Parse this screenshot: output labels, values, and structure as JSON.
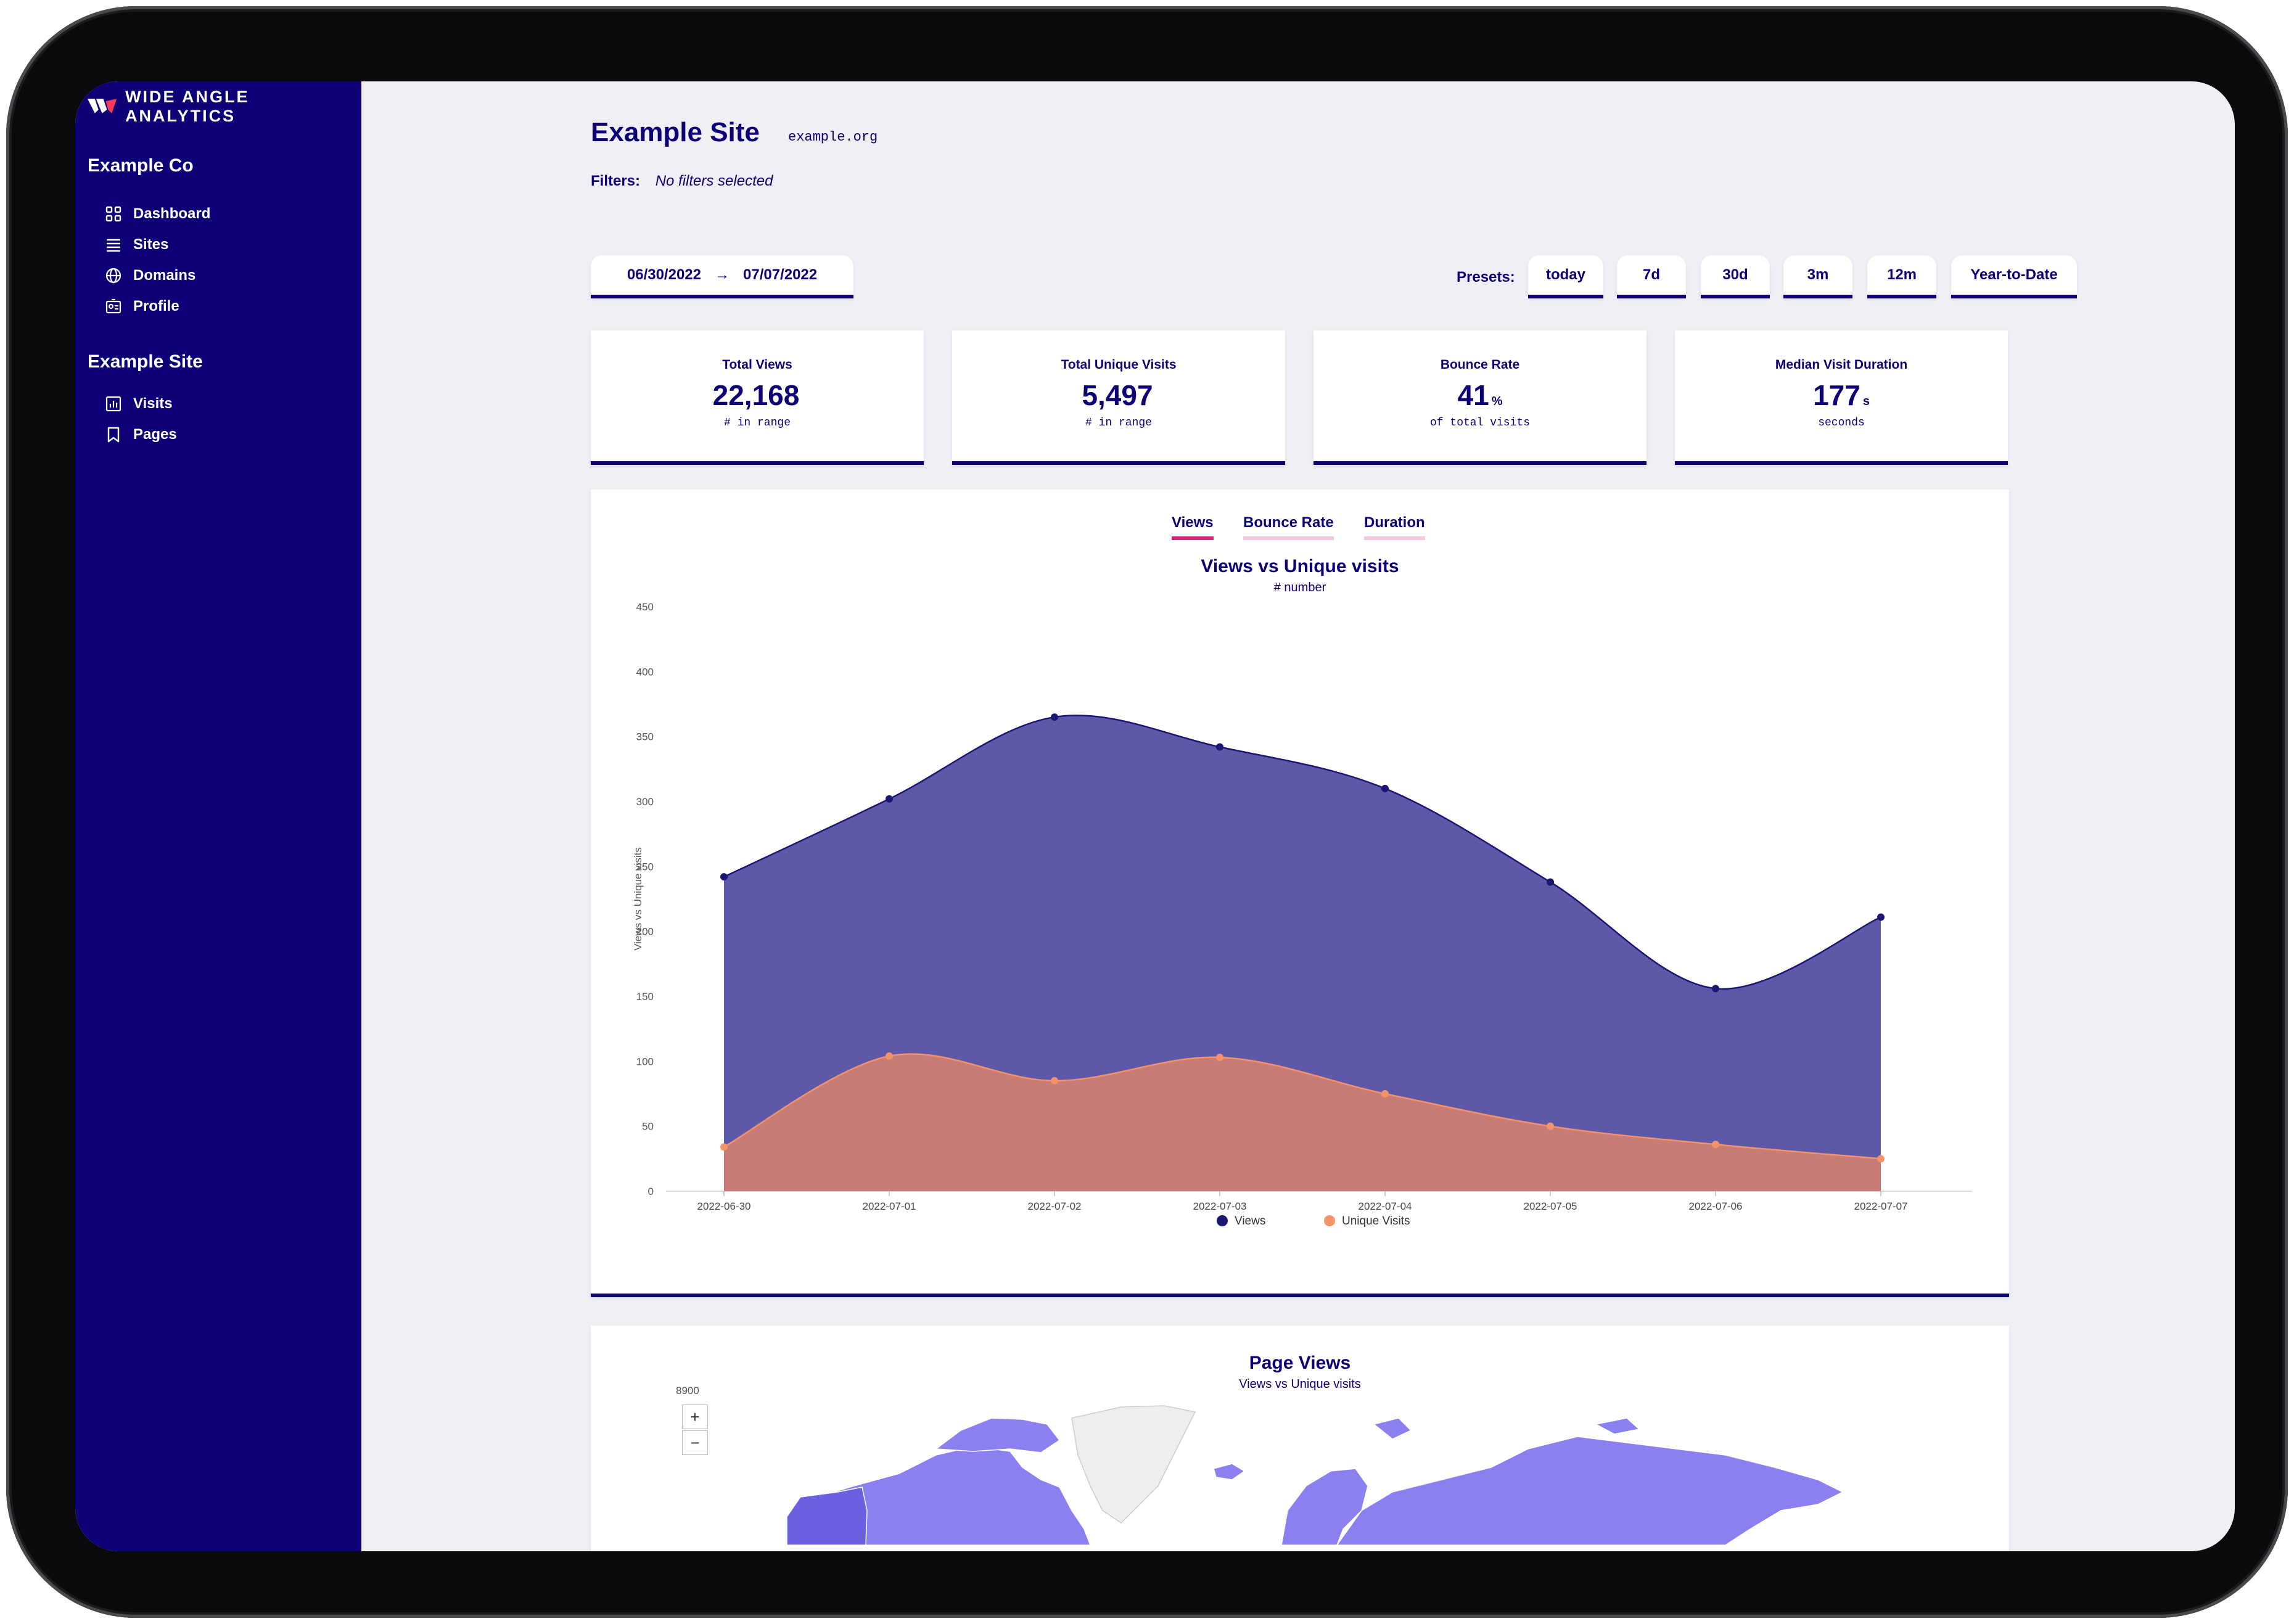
{
  "brand": {
    "name": "wide angle analytics"
  },
  "sidebar": {
    "org_title": "Example Co",
    "org_items": [
      {
        "label": "Dashboard",
        "icon": "dashboard-icon"
      },
      {
        "label": "Sites",
        "icon": "list-icon"
      },
      {
        "label": "Domains",
        "icon": "globe-icon"
      },
      {
        "label": "Profile",
        "icon": "id-card-icon"
      }
    ],
    "site_title": "Example Site",
    "site_items": [
      {
        "label": "Visits",
        "icon": "bar-chart-icon"
      },
      {
        "label": "Pages",
        "icon": "bookmark-icon"
      }
    ]
  },
  "header": {
    "title": "Example Site",
    "domain": "example.org",
    "filters_label": "Filters:",
    "filters_value": "No filters selected"
  },
  "date_range": {
    "start": "06/30/2022",
    "arrow": "→",
    "end": "07/07/2022"
  },
  "presets": {
    "label": "Presets:",
    "items": [
      "today",
      "7d",
      "30d",
      "3m",
      "12m",
      "Year-to-Date"
    ]
  },
  "stats": [
    {
      "label": "Total Views",
      "value": "22,168",
      "unit": "",
      "sub": "# in range"
    },
    {
      "label": "Total Unique Visits",
      "value": "5,497",
      "unit": "",
      "sub": "# in range"
    },
    {
      "label": "Bounce Rate",
      "value": "41",
      "unit": "%",
      "sub": "of total visits"
    },
    {
      "label": "Median Visit Duration",
      "value": "177",
      "unit": "s",
      "sub": "seconds"
    }
  ],
  "chart_tabs": [
    "Views",
    "Bounce Rate",
    "Duration"
  ],
  "colors": {
    "brand": "#0d0077",
    "views_fill": "#5e58a8",
    "views_line": "#1a1672",
    "unique_fill": "#c87c78",
    "unique_point": "#f4926a",
    "tab_active": "#d6247a",
    "tab_inactive": "#f2c9dc",
    "map_land": "#8a80f0",
    "map_dark": "#6a60e0",
    "map_gray": "#eeeeee"
  },
  "chart_data": {
    "type": "area",
    "title": "Views vs Unique visits",
    "subtitle": "# number",
    "ylabel": "Views vs Unique visits",
    "xlabel": "",
    "ylim": [
      0,
      450
    ],
    "yticks": [
      "0",
      "50",
      "100",
      "150",
      "200",
      "250",
      "300",
      "350",
      "400",
      "450"
    ],
    "x": [
      "2022-06-30",
      "2022-07-01",
      "2022-07-02",
      "2022-07-03",
      "2022-07-04",
      "2022-07-05",
      "2022-07-06",
      "2022-07-07"
    ],
    "series": [
      {
        "name": "Views",
        "values": [
          242,
          302,
          365,
          342,
          310,
          238,
          156,
          211
        ]
      },
      {
        "name": "Unique Visits",
        "values": [
          34,
          104,
          85,
          103,
          75,
          50,
          36,
          25
        ]
      }
    ],
    "legend": "bottom-center",
    "grid": false
  },
  "map_panel": {
    "title": "Page Views",
    "subtitle": "Views vs Unique visits",
    "scale_label": "8900",
    "zoom_in": "+",
    "zoom_out": "−"
  }
}
